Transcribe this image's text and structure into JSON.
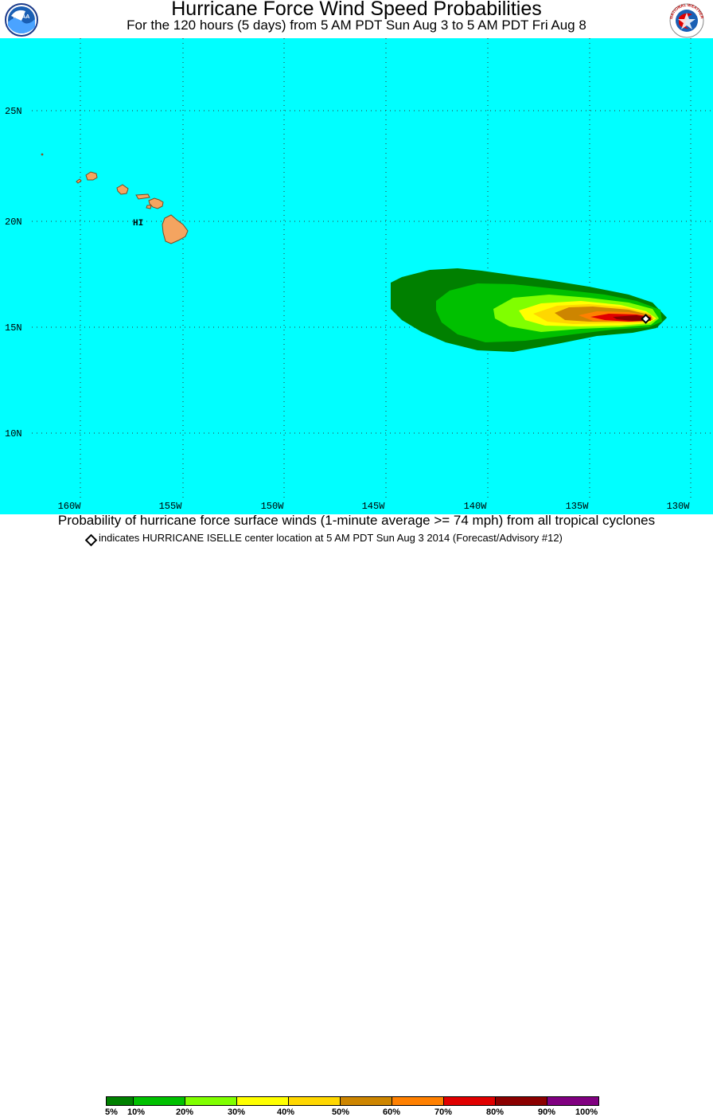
{
  "header": {
    "title": "Hurricane Force Wind Speed Probabilities",
    "subtitle": "For the 120 hours (5 days) from 5 AM PDT Sun Aug 3 to 5 AM PDT Fri Aug 8",
    "left_logo_text": "NOAA",
    "right_logo_text": "NATIONAL WEATHER SERVICE"
  },
  "map": {
    "ocean_color": "#00ffff",
    "land_color": "#f4a460",
    "lat_labels": [
      "25N",
      "20N",
      "15N",
      "10N"
    ],
    "lon_labels": [
      "160W",
      "155W",
      "150W",
      "145W",
      "140W",
      "135W",
      "130W"
    ],
    "region_label": "HI",
    "storm_center": {
      "lat": 15.4,
      "lon": -132.3
    }
  },
  "caption": "Probability of hurricane force surface winds (1-minute average >= 74 mph) from all tropical cyclones",
  "note": "indicates HURRICANE ISELLE center location at 5 AM PDT Sun Aug 3 2014 (Forecast/Advisory #12)",
  "legend": {
    "colors": [
      "#008000",
      "#00c000",
      "#80ff00",
      "#ffff00",
      "#ffd700",
      "#cd8500",
      "#ff8000",
      "#e00000",
      "#8b0000",
      "#800080"
    ],
    "labels": [
      "5%",
      "10%",
      "20%",
      "30%",
      "40%",
      "50%",
      "60%",
      "70%",
      "80%",
      "90%",
      "100%"
    ]
  }
}
